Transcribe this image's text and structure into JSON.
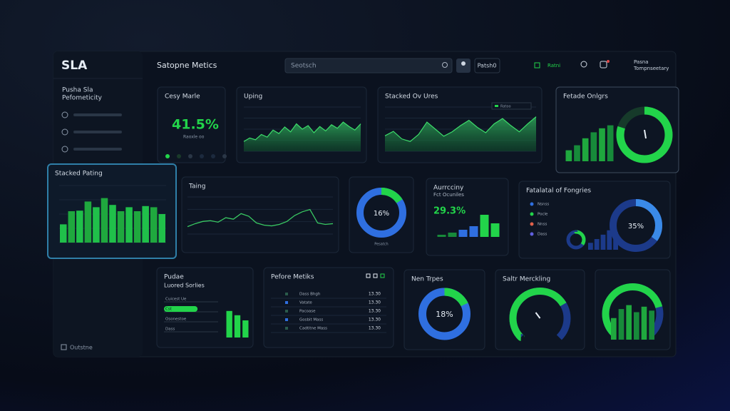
{
  "sidebar": {
    "logo": "SLA",
    "section": [
      "Pusha Sla",
      "Pefometicity"
    ],
    "footer": "Outstne"
  },
  "header": {
    "title": "Satopne Metics",
    "search": "Seotsch",
    "button": "Patsh0",
    "status": "Ratni",
    "user": [
      "Pasna",
      "Tompnseetary"
    ]
  },
  "cards": [
    {
      "type": "kpi",
      "title": "Cesy Marle",
      "value_label": "41.5%",
      "caption": "Raoxle oo"
    },
    {
      "type": "area",
      "title": "Uping",
      "ylim": [
        0,
        100
      ],
      "values": [
        22,
        30,
        26,
        38,
        32,
        48,
        40,
        55,
        44,
        62,
        50,
        58,
        42,
        56,
        46,
        60,
        52,
        66,
        56,
        48,
        62
      ]
    },
    {
      "type": "area",
      "title": "Stacked Ov Ures",
      "legend": "Ratoo",
      "ylim": [
        0,
        100
      ],
      "values": [
        35,
        45,
        28,
        22,
        38,
        66,
        50,
        34,
        44,
        58,
        70,
        54,
        42,
        62,
        74,
        58,
        44,
        62,
        78
      ]
    },
    {
      "type": "combo",
      "title": "Fetade Onlgrs",
      "ylim": [
        0,
        100
      ],
      "values": [
        22,
        32,
        46,
        58,
        66,
        72
      ],
      "donut": 80
    },
    {
      "type": "bar",
      "title": "Stacked Pating",
      "ylim": [
        0,
        100
      ],
      "values": [
        32,
        55,
        56,
        72,
        62,
        78,
        66,
        55,
        62,
        55,
        64,
        62,
        50
      ]
    },
    {
      "type": "line",
      "title": "Taing",
      "ylim": [
        0,
        100
      ],
      "values": [
        20,
        28,
        34,
        36,
        32,
        44,
        40,
        55,
        48,
        30,
        24,
        22,
        26,
        34,
        50,
        60,
        66,
        30,
        26,
        28
      ]
    },
    {
      "type": "donut",
      "title": "",
      "value": 16,
      "value_label": "16%",
      "caption": "Pesatch"
    },
    {
      "type": "kpibars",
      "title": "Aurrcciny",
      "subtitle": "Fct Ocuniles",
      "value_label": "29.3%",
      "ylim": [
        0,
        100
      ],
      "values": [
        6,
        12,
        20,
        30,
        62,
        38
      ]
    },
    {
      "type": "legendcombo",
      "title": "Fatalatal of Fongries",
      "legend": [
        "Nsnss",
        "Pocle",
        "Nnss",
        "Dass"
      ],
      "ylim": [
        0,
        100
      ],
      "values": [
        22,
        34,
        48,
        62,
        56
      ],
      "donut": 35,
      "value_label": "35%"
    },
    {
      "type": "progress",
      "title": "Pudae",
      "subtitle": "Luored Sorlies",
      "items": [
        {
          "name": "Cuicest Ue",
          "value": 0
        },
        {
          "name": "Cst",
          "value": 62
        },
        {
          "name": "Osonestoe",
          "value": 0
        },
        {
          "name": "Dass",
          "value": 0
        }
      ],
      "ylim": [
        0,
        100
      ],
      "values": [
        62,
        52,
        40
      ]
    },
    {
      "type": "table",
      "title": "Pefore Metiks",
      "rows": [
        [
          "Dass Bhgh",
          "13.30"
        ],
        [
          "Vatate",
          "13.30"
        ],
        [
          "Pacoase",
          "13.30"
        ],
        [
          "Gosbit Mass",
          "13.30"
        ],
        [
          "Cadtitne Mass",
          "13.30"
        ]
      ]
    },
    {
      "type": "donut",
      "title": "Nen Trpes",
      "value": 18,
      "value_label": "18%"
    },
    {
      "type": "gauge",
      "title": "Saltr Merckling",
      "value": 72
    },
    {
      "type": "gaugebars",
      "title": "",
      "value": 78,
      "ylim": [
        0,
        100
      ],
      "values": [
        55,
        78,
        88,
        70,
        84,
        74
      ]
    }
  ]
}
